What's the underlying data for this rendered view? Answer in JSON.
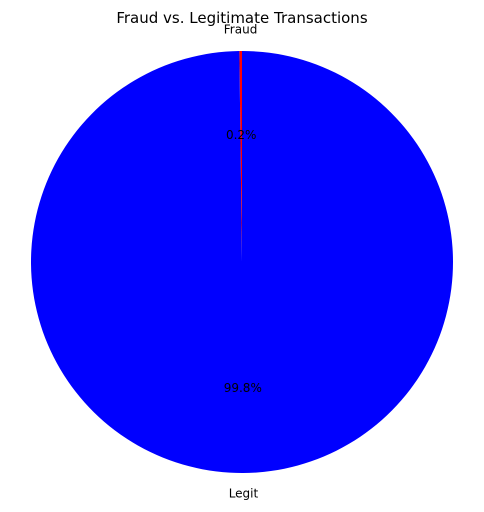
{
  "chart_data": {
    "type": "pie",
    "title": "Fraud vs. Legitimate Transactions",
    "slices": [
      {
        "label": "Fraud",
        "value": 0.2,
        "pct_label": "0.2%",
        "color": "#ff0000"
      },
      {
        "label": "Legit",
        "value": 99.8,
        "pct_label": "99.8%",
        "color": "#0000ff"
      }
    ],
    "start_angle_deg": 90,
    "direction": "counterclockwise"
  }
}
